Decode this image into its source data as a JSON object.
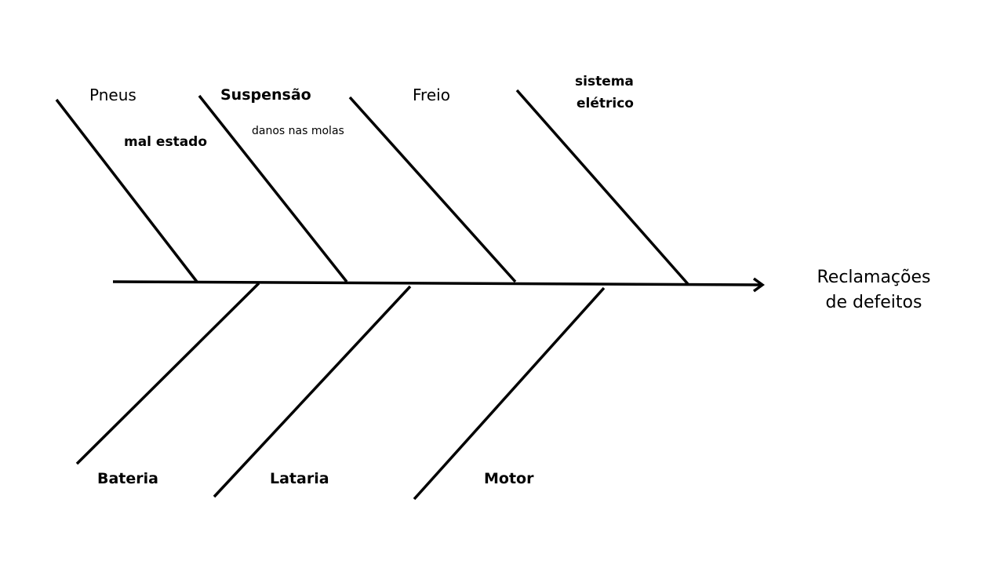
{
  "effect": {
    "line1": "Reclamações",
    "line2": "de defeitos"
  },
  "categories": {
    "pneus": "Pneus",
    "suspensao": "Suspensão",
    "freio": "Freio",
    "sistema_eletrico_line1": "sistema",
    "sistema_eletrico_line2": "elétrico",
    "bateria": "Bateria",
    "lataria": "Lataria",
    "motor": "Motor"
  },
  "causes": {
    "mal_estado": "mal estado",
    "danos_nas_molas": "danos nas molas"
  }
}
